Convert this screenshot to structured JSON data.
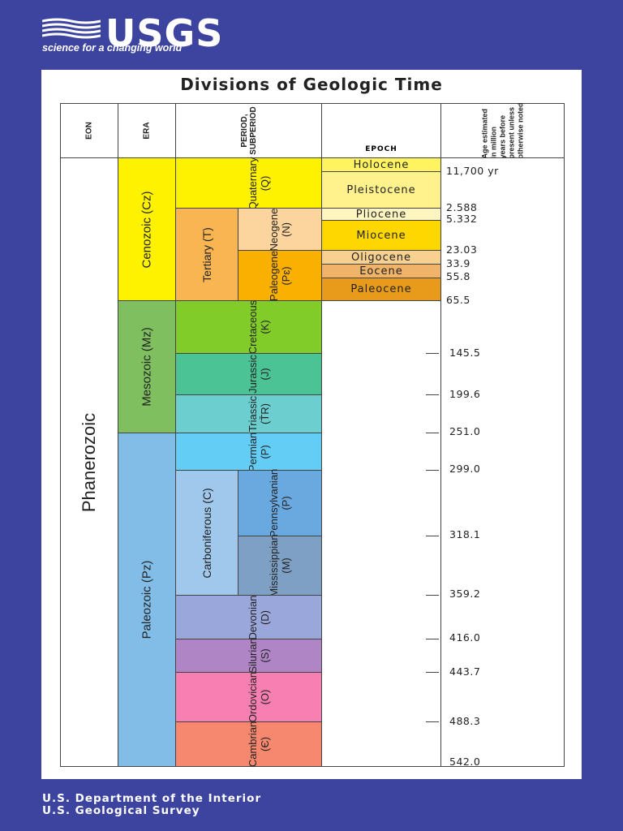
{
  "logo": {
    "name": "USGS",
    "tagline": "science for a changing world"
  },
  "title": "Divisions of Geologic Time",
  "headers": {
    "eon": "EON",
    "era": "ERA",
    "period": [
      "PERIOD,",
      "SUBPERIOD"
    ],
    "epoch": "EPOCH",
    "age": [
      "Age estimated",
      "in million",
      "years before",
      "present unless",
      "otherwise noted"
    ]
  },
  "eon": "Phanerozoic",
  "eras": [
    "Cenozoic (Cz)",
    "Mesozoic (Mz)",
    "Paleozoic (Pz)"
  ],
  "periods": {
    "quaternary": [
      "Quaternary",
      "(Q)"
    ],
    "tertiary": "Tertiary (T)",
    "neogene": [
      "Neogene",
      "(N)"
    ],
    "paleogene": [
      "Paleogene",
      "(Pɛ)"
    ],
    "cretaceous": [
      "Cretaceous",
      "(K)"
    ],
    "jurassic": [
      "Jurassic",
      "(J)"
    ],
    "triassic": [
      "Triassic",
      "(T̄R)"
    ],
    "permian": [
      "Permian",
      "(P)"
    ],
    "carboniferous": "Carboniferous (C)",
    "pennsylvanian": [
      "Pennsylvanian",
      "(P)"
    ],
    "mississippian": [
      "Mississippian",
      "(M)"
    ],
    "devonian": [
      "Devonian",
      "(D)"
    ],
    "silurian": [
      "Silurian",
      "(S)"
    ],
    "ordovician": [
      "Ordovician",
      "(O)"
    ],
    "cambrian": [
      "Cambrian",
      "(Є)"
    ]
  },
  "epochs": [
    "Holocene",
    "Pleistocene",
    "Pliocene",
    "Miocene",
    "Oligocene",
    "Eocene",
    "Paleocene"
  ],
  "ages": [
    "11,700 yr",
    "2.588",
    "5.332",
    "23.03",
    "33.9",
    "55.8",
    "65.5",
    "145.5",
    "199.6",
    "251.0",
    "299.0",
    "318.1",
    "359.2",
    "416.0",
    "443.7",
    "488.3",
    "542.0"
  ],
  "colors": {
    "background": "#3c44a0",
    "cenozoic": "#fff200",
    "mesozoic": "#7fbf5f",
    "paleozoic": "#82bde8",
    "quaternary": "#fff200",
    "tertiary": "#f9b552",
    "neogene": "#fcd49e",
    "paleogene": "#f9b000",
    "cretaceous": "#82cc2a",
    "jurassic": "#4cc395",
    "triassic": "#6ccece",
    "permian": "#63cdf5",
    "carboniferous": "#a0c8ec",
    "pennsylvanian": "#6aa8e0",
    "mississippian": "#7ea0c4",
    "devonian": "#9aa7da",
    "silurian": "#b085c5",
    "ordovician": "#f77fb2",
    "cambrian": "#f78870",
    "holocene": "#fff460",
    "pleistocene": "#fff28c",
    "pliocene": "#fff5c0",
    "miocene": "#ffd700",
    "oligocene": "#f8d090",
    "eocene": "#efb36a",
    "paleocene": "#e89a1a"
  },
  "footer": [
    "U.S. Department of the Interior",
    "U.S. Geological Survey"
  ]
}
